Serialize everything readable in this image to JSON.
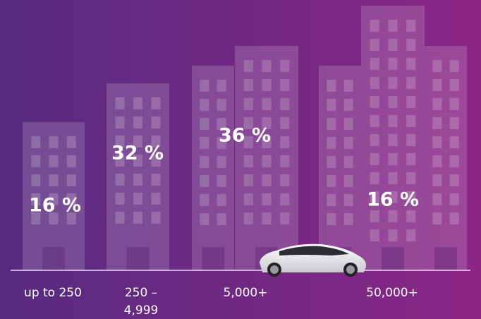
{
  "groups": [
    {
      "label": [
        "up to 250"
      ],
      "share": "16 %"
    },
    {
      "label": [
        "250 –",
        "4,999"
      ],
      "share": "32 %"
    },
    {
      "label": [
        "5,000+"
      ],
      "share": "36 %"
    },
    {
      "label": [
        "50,000+"
      ],
      "share": "16 %"
    }
  ]
}
